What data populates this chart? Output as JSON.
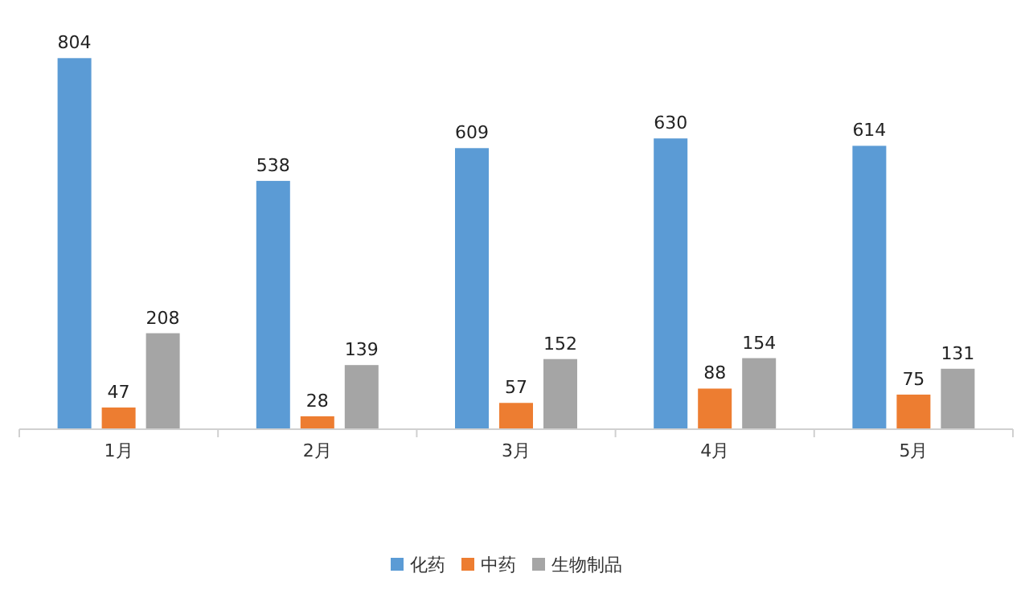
{
  "chart_data": {
    "type": "bar",
    "categories": [
      "1月",
      "2月",
      "3月",
      "4月",
      "5月"
    ],
    "series": [
      {
        "name": "化药",
        "color": "#5b9bd5",
        "values": [
          804,
          538,
          609,
          630,
          614
        ]
      },
      {
        "name": "中药",
        "color": "#ed7d31",
        "values": [
          47,
          28,
          57,
          88,
          75
        ]
      },
      {
        "name": "生物制品",
        "color": "#a5a5a5",
        "values": [
          208,
          139,
          152,
          154,
          131
        ]
      }
    ],
    "data_labels": true,
    "legend": "bottom"
  }
}
